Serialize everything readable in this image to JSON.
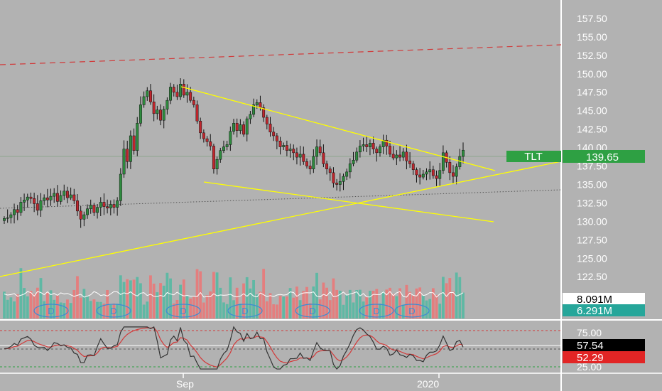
{
  "chart_data": {
    "type": "candlestick",
    "symbol": "TLT",
    "last_price": "139.65",
    "price_axis": {
      "ticks": [
        "157.50",
        "155.00",
        "152.50",
        "150.00",
        "147.50",
        "145.00",
        "142.50",
        "140.00",
        "137.50",
        "135.00",
        "132.50",
        "130.00",
        "127.50",
        "125.00",
        "122.50"
      ],
      "range": [
        120.5,
        160.0
      ]
    },
    "time_axis": {
      "labels": [
        "Sep",
        "2020"
      ]
    },
    "candles_close": [
      130.4,
      130.5,
      130.9,
      131.6,
      131.2,
      132.6,
      132.9,
      133.3,
      133.1,
      132.4,
      131.5,
      132.8,
      133.2,
      132.9,
      133.4,
      133.8,
      132.7,
      133.5,
      134.1,
      133.2,
      133.6,
      132.8,
      131.4,
      130.3,
      130.9,
      131.7,
      132.2,
      131.2,
      131.9,
      132.6,
      132.0,
      131.8,
      132.3,
      131.9,
      132.8,
      136.4,
      139.8,
      138.1,
      141.6,
      139.6,
      143.3,
      145.8,
      146.9,
      147.7,
      146.2,
      144.6,
      145.1,
      143.7,
      145.2,
      146.4,
      148.2,
      147.5,
      146.9,
      148.6,
      147.1,
      147.5,
      146.4,
      145.8,
      143.6,
      142.0,
      141.2,
      140.8,
      140.2,
      137.1,
      138.4,
      139.6,
      140.1,
      140.4,
      142.2,
      143.3,
      142.3,
      143.1,
      141.8,
      143.9,
      144.5,
      145.8,
      146.1,
      145.4,
      144.1,
      143.2,
      142.1,
      141.6,
      140.9,
      140.1,
      140.3,
      139.6,
      139.8,
      139.3,
      138.7,
      139.1,
      138.1,
      137.5,
      137.1,
      138.8,
      140.1,
      139.3,
      137.8,
      137.1,
      136.6,
      135.2,
      135.0,
      135.4,
      136.1,
      136.7,
      137.8,
      138.3,
      139.4,
      140.2,
      140.4,
      140.1,
      140.6,
      139.8,
      139.3,
      140.1,
      141.0,
      140.2,
      139.1,
      138.6,
      139.0,
      138.7,
      139.4,
      138.2,
      137.8,
      137.0,
      136.3,
      136.0,
      136.4,
      136.7,
      137.0,
      136.2,
      135.8,
      136.9,
      139.3,
      138.0,
      136.6,
      136.1,
      137.4,
      138.8,
      139.65
    ],
    "volume_avg": {
      "label": "8.091M",
      "color": "#ffffff"
    },
    "volume_last": {
      "label": "6.291M",
      "color": "#26a69a"
    },
    "dividend_marker": "D",
    "dividend_count": 7,
    "rsi": {
      "levels": [
        "75.00",
        "25.00"
      ],
      "value": "57.54",
      "signal": "52.29"
    }
  },
  "colors": {
    "background": "#b2b2b2",
    "up_candle": "#2e8b3e",
    "down_candle": "#c0262d",
    "trendline": "#ffff00",
    "resistance_dash": "#d13a3a",
    "price_tag": "#2ea043",
    "volume_up": "#5fb8a4",
    "volume_down": "#e47e7e",
    "rsi_line": "#333333",
    "rsi_signal": "#d33a3a",
    "dividend": "#3d8bd4"
  }
}
